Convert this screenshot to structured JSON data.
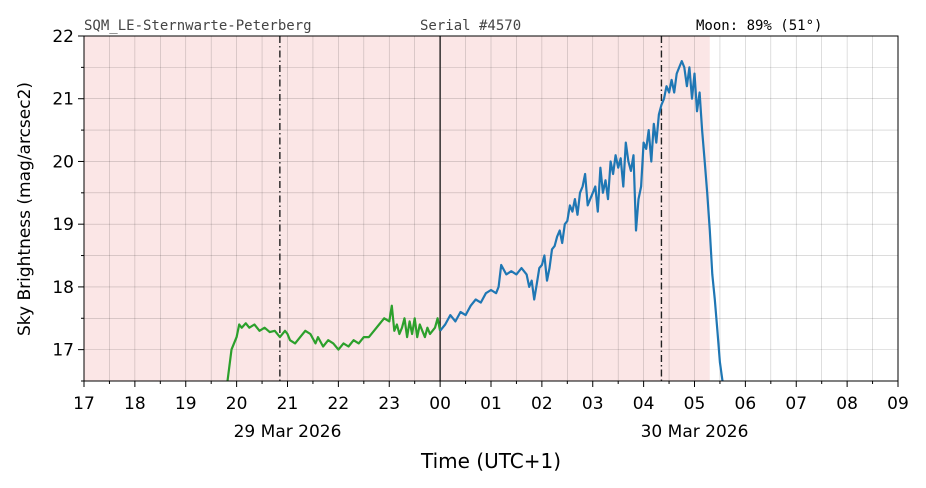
{
  "header": {
    "site": "SQM_LE-Sternwarte-Peterberg",
    "serial": "Serial #4570",
    "moon": "Moon: 89% (51°)"
  },
  "chart_data": {
    "type": "line",
    "title": "",
    "xlabel": "Time (UTC+1)",
    "ylabel": "Sky Brightness (mag/arcsec2)",
    "xlim": [
      17,
      33
    ],
    "ylim": [
      16.5,
      22
    ],
    "y_ticks": [
      17,
      18,
      19,
      20,
      21,
      22
    ],
    "x_ticks": [
      17,
      18,
      19,
      20,
      21,
      22,
      23,
      24,
      25,
      26,
      27,
      28,
      29,
      30,
      31,
      32,
      33
    ],
    "x_tick_labels": [
      "17",
      "18",
      "19",
      "20",
      "21",
      "22",
      "23",
      "00",
      "01",
      "02",
      "03",
      "04",
      "05",
      "06",
      "07",
      "08",
      "09"
    ],
    "date_labels": [
      {
        "x": 21,
        "text": "29 Mar 2026"
      },
      {
        "x": 29,
        "text": "30 Mar 2026"
      }
    ],
    "grid": true,
    "night_shading": {
      "from": 17,
      "to": 29.3,
      "color": "#fbe6e6"
    },
    "vlines": [
      {
        "x": 20.85,
        "style": "dashdot",
        "color": "#222222"
      },
      {
        "x": 24.0,
        "style": "solid",
        "color": "#222222"
      },
      {
        "x": 28.35,
        "style": "dashdot",
        "color": "#222222"
      }
    ],
    "series": [
      {
        "color": "#2ca02c",
        "x": [
          19.82,
          19.9,
          20.0,
          20.05,
          20.1,
          20.18,
          20.25,
          20.35,
          20.45,
          20.55,
          20.65,
          20.75,
          20.85,
          20.95,
          21.0,
          21.05,
          21.15,
          21.25,
          21.35,
          21.45,
          21.55,
          21.6,
          21.7,
          21.8,
          21.9,
          22.0,
          22.1,
          22.2,
          22.3,
          22.4,
          22.5,
          22.6,
          22.7,
          22.8,
          22.9,
          23.0,
          23.05,
          23.1,
          23.15,
          23.2,
          23.25,
          23.3,
          23.35,
          23.4,
          23.45,
          23.5,
          23.55,
          23.6,
          23.65,
          23.7,
          23.75,
          23.8,
          23.85,
          23.9,
          23.95,
          24.0
        ],
        "y": [
          16.5,
          17.0,
          17.2,
          17.4,
          17.35,
          17.42,
          17.35,
          17.4,
          17.3,
          17.35,
          17.28,
          17.3,
          17.2,
          17.3,
          17.25,
          17.15,
          17.1,
          17.2,
          17.3,
          17.25,
          17.1,
          17.2,
          17.05,
          17.15,
          17.1,
          17.0,
          17.1,
          17.05,
          17.15,
          17.1,
          17.2,
          17.2,
          17.3,
          17.4,
          17.5,
          17.45,
          17.7,
          17.3,
          17.4,
          17.25,
          17.35,
          17.5,
          17.2,
          17.45,
          17.25,
          17.5,
          17.2,
          17.4,
          17.3,
          17.2,
          17.35,
          17.25,
          17.3,
          17.35,
          17.5,
          17.3
        ]
      },
      {
        "color": "#1f77b4",
        "x": [
          24.0,
          24.1,
          24.2,
          24.3,
          24.4,
          24.5,
          24.6,
          24.7,
          24.8,
          24.9,
          25.0,
          25.1,
          25.15,
          25.2,
          25.3,
          25.4,
          25.5,
          25.6,
          25.7,
          25.75,
          25.8,
          25.85,
          25.9,
          25.95,
          26.0,
          26.05,
          26.1,
          26.15,
          26.2,
          26.25,
          26.3,
          26.35,
          26.4,
          26.45,
          26.5,
          26.55,
          26.6,
          26.65,
          26.7,
          26.75,
          26.8,
          26.85,
          26.9,
          26.95,
          27.0,
          27.05,
          27.1,
          27.15,
          27.2,
          27.25,
          27.3,
          27.35,
          27.4,
          27.45,
          27.5,
          27.55,
          27.6,
          27.65,
          27.7,
          27.75,
          27.8,
          27.85,
          27.9,
          27.95,
          28.0,
          28.05,
          28.1,
          28.15,
          28.2,
          28.25,
          28.3,
          28.35,
          28.4,
          28.45,
          28.5,
          28.55,
          28.6,
          28.65,
          28.7,
          28.75,
          28.8,
          28.85,
          28.9,
          28.95,
          29.0,
          29.05,
          29.1,
          29.15,
          29.2,
          29.25,
          29.3,
          29.35,
          29.4,
          29.45,
          29.5,
          29.55
        ],
        "y": [
          17.3,
          17.4,
          17.55,
          17.45,
          17.6,
          17.55,
          17.7,
          17.8,
          17.75,
          17.9,
          17.95,
          17.9,
          18.0,
          18.35,
          18.2,
          18.25,
          18.2,
          18.3,
          18.2,
          18.0,
          18.1,
          17.8,
          18.05,
          18.3,
          18.35,
          18.5,
          18.1,
          18.3,
          18.6,
          18.65,
          18.8,
          18.9,
          18.7,
          19.0,
          19.05,
          19.3,
          19.2,
          19.4,
          19.15,
          19.5,
          19.6,
          19.8,
          19.3,
          19.4,
          19.5,
          19.6,
          19.2,
          19.9,
          19.5,
          19.7,
          19.4,
          20.0,
          19.8,
          20.1,
          19.9,
          20.05,
          19.6,
          20.3,
          20.0,
          19.85,
          20.1,
          18.9,
          19.4,
          19.6,
          20.3,
          20.2,
          20.5,
          20.0,
          20.6,
          20.3,
          20.75,
          20.9,
          21.0,
          21.2,
          21.1,
          21.3,
          21.1,
          21.4,
          21.5,
          21.6,
          21.5,
          21.2,
          21.5,
          21.0,
          21.4,
          20.8,
          21.1,
          20.5,
          20.0,
          19.5,
          18.9,
          18.2,
          17.8,
          17.3,
          16.8,
          16.5
        ]
      }
    ]
  }
}
